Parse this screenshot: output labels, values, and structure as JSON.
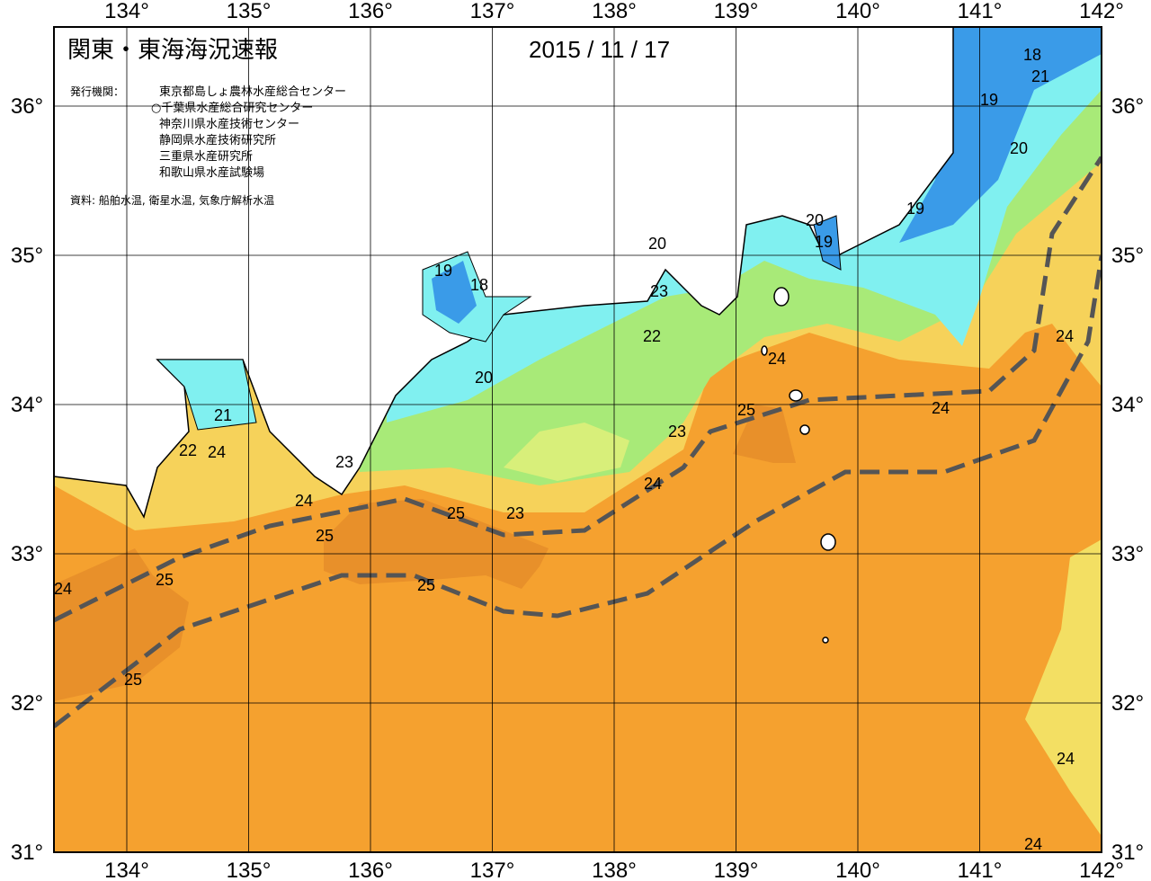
{
  "header": {
    "title": "関東・東海海況速報",
    "date": "2015 / 11 / 17"
  },
  "publisher": {
    "label": "発行機関：",
    "agencies": [
      "東京都島しょ農林水産総合センター",
      "○千葉県水産総合研究センター",
      "神奈川県水産技術センター",
      "静岡県水産技術研究所",
      "三重県水産研究所",
      "和歌山県水産試験場"
    ]
  },
  "source": "資料: 船舶水温, 衛星水温, 気象庁解析水温",
  "map": {
    "lon_labels": [
      "134°",
      "135°",
      "136°",
      "137°",
      "138°",
      "139°",
      "140°",
      "141°",
      "142°"
    ],
    "lat_labels": [
      "31°",
      "32°",
      "33°",
      "34°",
      "35°",
      "36°"
    ],
    "contour_labels": [
      18,
      21,
      19,
      20,
      19,
      20,
      19,
      20,
      19,
      18,
      23,
      22,
      24,
      20,
      21,
      25,
      24,
      23,
      22,
      24,
      23,
      24,
      24,
      25,
      23,
      25,
      25,
      24,
      25,
      24,
      25,
      24,
      24
    ]
  }
}
